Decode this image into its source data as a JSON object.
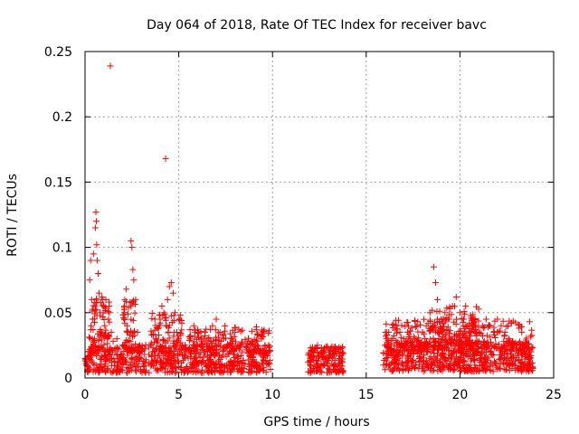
{
  "chart_data": {
    "type": "scatter",
    "title": "Day 064 of 2018, Rate Of TEC Index for receiver bavc",
    "xlabel": "GPS time / hours",
    "ylabel": "ROTI / TECUs",
    "xlim": [
      0,
      25
    ],
    "ylim": [
      0,
      0.25
    ],
    "xticks": [
      0,
      5,
      10,
      15,
      20,
      25
    ],
    "yticks": [
      0,
      0.05,
      0.1,
      0.15,
      0.2,
      0.25
    ],
    "xtick_labels": [
      "0",
      "5",
      "10",
      "15",
      "20",
      "25"
    ],
    "ytick_labels": [
      "0",
      "0.05",
      "0.1",
      "0.15",
      "0.2",
      "0.25"
    ],
    "grid": true,
    "marker": "+",
    "color": "#ff0000",
    "series": [
      {
        "name": "ROTI",
        "points": [
          [
            0.0,
            0.015
          ],
          [
            0.1,
            0.012
          ],
          [
            0.2,
            0.02
          ],
          [
            0.25,
            0.075
          ],
          [
            0.3,
            0.09
          ],
          [
            0.35,
            0.06
          ],
          [
            0.4,
            0.045
          ],
          [
            0.45,
            0.095
          ],
          [
            0.5,
            0.03
          ],
          [
            0.55,
            0.115
          ],
          [
            0.58,
            0.127
          ],
          [
            0.6,
            0.12
          ],
          [
            0.62,
            0.102
          ],
          [
            0.65,
            0.09
          ],
          [
            0.7,
            0.08
          ],
          [
            0.75,
            0.065
          ],
          [
            0.8,
            0.05
          ],
          [
            0.85,
            0.058
          ],
          [
            0.9,
            0.062
          ],
          [
            0.95,
            0.06
          ],
          [
            1.0,
            0.055
          ],
          [
            1.05,
            0.04
          ],
          [
            1.1,
            0.02
          ],
          [
            1.2,
            0.03
          ],
          [
            1.25,
            0.045
          ],
          [
            1.3,
            0.05
          ],
          [
            1.35,
            0.239
          ],
          [
            1.4,
            0.035
          ],
          [
            1.5,
            0.028
          ],
          [
            1.6,
            0.02
          ],
          [
            1.7,
            0.03
          ],
          [
            1.8,
            0.022
          ],
          [
            1.9,
            0.018
          ],
          [
            2.0,
            0.025
          ],
          [
            2.1,
            0.055
          ],
          [
            2.2,
            0.068
          ],
          [
            2.25,
            0.04
          ],
          [
            2.3,
            0.035
          ],
          [
            2.4,
            0.058
          ],
          [
            2.45,
            0.105
          ],
          [
            2.5,
            0.1
          ],
          [
            2.55,
            0.083
          ],
          [
            2.6,
            0.075
          ],
          [
            2.7,
            0.06
          ],
          [
            2.8,
            0.035
          ],
          [
            2.9,
            0.025
          ],
          [
            3.0,
            0.015
          ],
          [
            3.2,
            0.012
          ],
          [
            3.4,
            0.018
          ],
          [
            3.6,
            0.02
          ],
          [
            3.8,
            0.03
          ],
          [
            4.0,
            0.045
          ],
          [
            4.1,
            0.055
          ],
          [
            4.2,
            0.05
          ],
          [
            4.3,
            0.168
          ],
          [
            4.4,
            0.06
          ],
          [
            4.5,
            0.07
          ],
          [
            4.6,
            0.073
          ],
          [
            4.7,
            0.065
          ],
          [
            4.8,
            0.05
          ],
          [
            4.9,
            0.035
          ],
          [
            5.0,
            0.03
          ],
          [
            5.2,
            0.025
          ],
          [
            5.4,
            0.02
          ],
          [
            5.6,
            0.03
          ],
          [
            5.8,
            0.04
          ],
          [
            6.0,
            0.025
          ],
          [
            6.2,
            0.03
          ],
          [
            6.4,
            0.035
          ],
          [
            6.6,
            0.03
          ],
          [
            6.8,
            0.04
          ],
          [
            7.0,
            0.045
          ],
          [
            7.2,
            0.035
          ],
          [
            7.4,
            0.03
          ],
          [
            7.6,
            0.025
          ],
          [
            7.8,
            0.03
          ],
          [
            8.0,
            0.035
          ],
          [
            8.2,
            0.025
          ],
          [
            8.4,
            0.02
          ],
          [
            8.6,
            0.025
          ],
          [
            8.8,
            0.02
          ],
          [
            9.0,
            0.018
          ],
          [
            9.2,
            0.025
          ],
          [
            9.4,
            0.03
          ],
          [
            9.6,
            0.025
          ],
          [
            9.8,
            0.02
          ],
          [
            12.0,
            0.015
          ],
          [
            12.2,
            0.02
          ],
          [
            12.4,
            0.025
          ],
          [
            12.6,
            0.02
          ],
          [
            12.8,
            0.015
          ],
          [
            13.0,
            0.02
          ],
          [
            13.2,
            0.018
          ],
          [
            13.4,
            0.022
          ],
          [
            13.6,
            0.015
          ],
          [
            16.0,
            0.025
          ],
          [
            16.2,
            0.035
          ],
          [
            16.4,
            0.03
          ],
          [
            16.6,
            0.04
          ],
          [
            16.8,
            0.035
          ],
          [
            17.0,
            0.03
          ],
          [
            17.2,
            0.035
          ],
          [
            17.4,
            0.025
          ],
          [
            17.6,
            0.03
          ],
          [
            17.8,
            0.025
          ],
          [
            18.0,
            0.035
          ],
          [
            18.2,
            0.04
          ],
          [
            18.4,
            0.05
          ],
          [
            18.6,
            0.085
          ],
          [
            18.7,
            0.073
          ],
          [
            18.8,
            0.06
          ],
          [
            19.0,
            0.045
          ],
          [
            19.2,
            0.05
          ],
          [
            19.4,
            0.045
          ],
          [
            19.6,
            0.055
          ],
          [
            19.8,
            0.062
          ],
          [
            20.0,
            0.05
          ],
          [
            20.2,
            0.045
          ],
          [
            20.4,
            0.04
          ],
          [
            20.6,
            0.035
          ],
          [
            20.8,
            0.04
          ],
          [
            21.0,
            0.035
          ],
          [
            21.2,
            0.04
          ],
          [
            21.4,
            0.045
          ],
          [
            21.6,
            0.04
          ],
          [
            21.8,
            0.035
          ],
          [
            22.0,
            0.045
          ],
          [
            22.2,
            0.04
          ],
          [
            22.4,
            0.035
          ],
          [
            22.6,
            0.03
          ],
          [
            22.8,
            0.028
          ],
          [
            23.0,
            0.025
          ],
          [
            23.2,
            0.022
          ],
          [
            23.4,
            0.02
          ],
          [
            23.6,
            0.018
          ],
          [
            23.8,
            0.02
          ]
        ]
      }
    ],
    "dense_bands": [
      {
        "x_start": 0.0,
        "x_end": 9.9,
        "y_min": 0.004,
        "y_max": 0.026,
        "density": 700
      },
      {
        "x_start": 0.2,
        "x_end": 1.3,
        "y_min": 0.02,
        "y_max": 0.065,
        "density": 70
      },
      {
        "x_start": 2.0,
        "x_end": 2.7,
        "y_min": 0.02,
        "y_max": 0.06,
        "density": 50
      },
      {
        "x_start": 3.5,
        "x_end": 5.2,
        "y_min": 0.02,
        "y_max": 0.05,
        "density": 80
      },
      {
        "x_start": 5.5,
        "x_end": 9.9,
        "y_min": 0.02,
        "y_max": 0.04,
        "density": 120
      },
      {
        "x_start": 11.9,
        "x_end": 13.8,
        "y_min": 0.004,
        "y_max": 0.024,
        "density": 160
      },
      {
        "x_start": 15.9,
        "x_end": 23.9,
        "y_min": 0.005,
        "y_max": 0.028,
        "density": 650
      },
      {
        "x_start": 16.0,
        "x_end": 23.9,
        "y_min": 0.02,
        "y_max": 0.045,
        "density": 220
      },
      {
        "x_start": 18.4,
        "x_end": 21.0,
        "y_min": 0.025,
        "y_max": 0.055,
        "density": 120
      }
    ]
  }
}
